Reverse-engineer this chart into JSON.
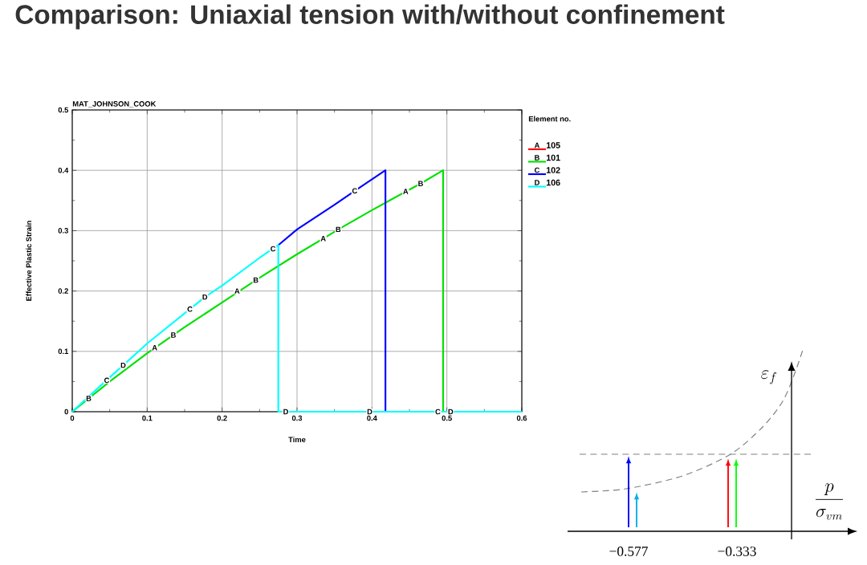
{
  "chart_data": [
    {
      "type": "line",
      "title": "Comparison: Uniaxial tension with/without confinement",
      "subtitle": "MAT_JOHNSON_COOK",
      "xlabel": "Time",
      "ylabel": "Effective Plastic Strain",
      "legend_title": "Element no.",
      "legend": "top right",
      "grid": true,
      "annotations": [
        {
          "text": "A",
          "x": 0.11,
          "y": 0.106
        },
        {
          "text": "A",
          "x": 0.22,
          "y": 0.2
        },
        {
          "text": "A",
          "x": 0.335,
          "y": 0.287
        },
        {
          "text": "A",
          "x": 0.445,
          "y": 0.365
        },
        {
          "text": "C",
          "x": 0.046,
          "y": 0.052
        },
        {
          "text": "C",
          "x": 0.157,
          "y": 0.17
        },
        {
          "text": "C",
          "x": 0.268,
          "y": 0.27
        },
        {
          "text": "C",
          "x": 0.488,
          "y": 0
        }
      ],
      "xlim": [
        0,
        0.6
      ],
      "ylim": [
        0,
        0.5
      ],
      "xticks": [
        0,
        0.1,
        0.2,
        0.3,
        0.4,
        0.5,
        0.6
      ],
      "yticks": [
        0,
        0.1,
        0.2,
        0.3,
        0.4,
        0.5
      ],
      "series": [
        {
          "name": "105",
          "color": "#ff0000"
        },
        {
          "name": "101",
          "color": "#00e000",
          "x": [
            0,
            0.022,
            0.05,
            0.1,
            0.135,
            0.15,
            0.2,
            0.245,
            0.25,
            0.3,
            0.35,
            0.355,
            0.4,
            0.45,
            0.465,
            0.495,
            0.495,
            0.6
          ],
          "values": [
            0,
            0.022,
            0.05,
            0.097,
            0.127,
            0.14,
            0.181,
            0.218,
            0.222,
            0.261,
            0.298,
            0.302,
            0.334,
            0.368,
            0.378,
            0.4,
            0,
            0
          ],
          "value_labels": [
            null,
            "B",
            null,
            null,
            "B",
            null,
            null,
            "B",
            null,
            null,
            null,
            "B",
            null,
            null,
            "B",
            null,
            null,
            null
          ]
        },
        {
          "name": "102",
          "color": "#0000ff",
          "x": [
            0.275,
            0.3,
            0.35,
            0.377,
            0.418,
            0.418
          ],
          "values": [
            0.276,
            0.302,
            0.343,
            0.366,
            0.4,
            0
          ],
          "value_labels": [
            null,
            null,
            null,
            "C",
            null,
            null
          ]
        },
        {
          "name": "106",
          "color": "#00ffff",
          "x": [
            0,
            0.05,
            0.068,
            0.1,
            0.15,
            0.177,
            0.2,
            0.25,
            0.275,
            0.275,
            0.285,
            0.397,
            0.505,
            0.6
          ],
          "values": [
            0,
            0.057,
            0.077,
            0.113,
            0.163,
            0.19,
            0.209,
            0.255,
            0.276,
            0,
            0,
            0,
            0,
            0
          ],
          "value_labels": [
            null,
            null,
            "D",
            null,
            null,
            "D",
            null,
            null,
            null,
            null,
            "D",
            "D",
            "D",
            null
          ]
        }
      ]
    },
    {
      "type": "other",
      "xlabel": "\\frac{p}{\\sigma_{vm}}",
      "ylabel": "\\varepsilon_f",
      "annotations": [
        "−0.577",
        "−0.333"
      ]
    }
  ]
}
